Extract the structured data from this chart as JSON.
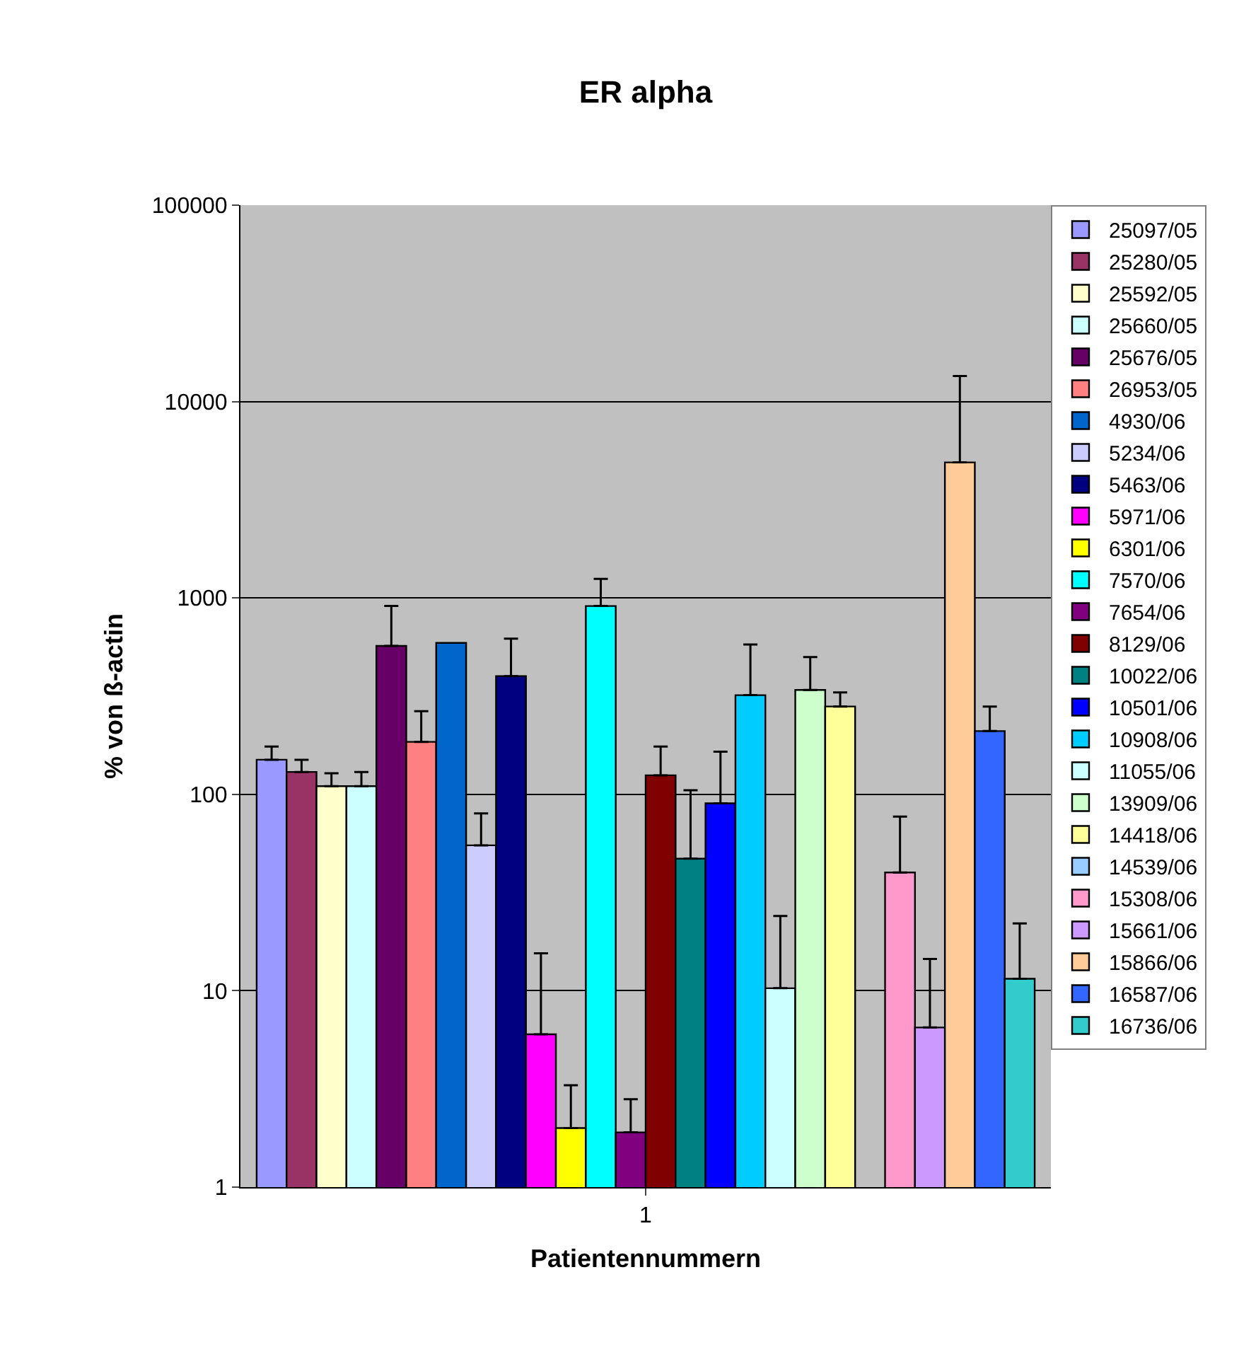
{
  "chart_data": {
    "type": "bar",
    "title": "ER alpha",
    "xlabel": "Patientennummern",
    "ylabel": "% von ß-actin",
    "categories": [
      "1"
    ],
    "log": true,
    "ylim": [
      1,
      100000
    ],
    "yticks": [
      1,
      10,
      100,
      1000,
      10000,
      100000
    ],
    "grid": "y",
    "legend": "right",
    "series": [
      {
        "name": "25097/05",
        "color": "#9999ff",
        "values": [
          150
        ],
        "errors": [
          [
            150,
            175
          ]
        ]
      },
      {
        "name": "25280/05",
        "color": "#993366",
        "values": [
          130
        ],
        "errors": [
          [
            130,
            150
          ]
        ]
      },
      {
        "name": "25592/05",
        "color": "#ffffcc",
        "values": [
          110
        ],
        "errors": [
          [
            110,
            128
          ]
        ]
      },
      {
        "name": "25660/05",
        "color": "#ccffff",
        "values": [
          110
        ],
        "errors": [
          [
            110,
            130
          ]
        ]
      },
      {
        "name": "25676/05",
        "color": "#660066",
        "values": [
          570
        ],
        "errors": [
          [
            570,
            910
          ]
        ]
      },
      {
        "name": "26953/05",
        "color": "#ff8080",
        "values": [
          185
        ],
        "errors": [
          [
            185,
            265
          ]
        ]
      },
      {
        "name": "4930/06",
        "color": "#0066cc",
        "values": [
          590
        ]
      },
      {
        "name": "5234/06",
        "color": "#ccccff",
        "values": [
          55
        ],
        "errors": [
          [
            55,
            80
          ]
        ]
      },
      {
        "name": "5463/06",
        "color": "#000080",
        "values": [
          400
        ],
        "errors": [
          [
            400,
            620
          ]
        ]
      },
      {
        "name": "5971/06",
        "color": "#ff00ff",
        "values": [
          6
        ],
        "errors": [
          [
            6,
            15.5
          ]
        ]
      },
      {
        "name": "6301/06",
        "color": "#ffff00",
        "values": [
          2
        ],
        "errors": [
          [
            2,
            3.3
          ]
        ]
      },
      {
        "name": "7570/06",
        "color": "#00ffff",
        "values": [
          910
        ],
        "errors": [
          [
            910,
            1250
          ]
        ]
      },
      {
        "name": "7654/06",
        "color": "#800080",
        "values": [
          1.9
        ],
        "errors": [
          [
            1.9,
            2.8
          ]
        ]
      },
      {
        "name": "8129/06",
        "color": "#800000",
        "values": [
          125
        ],
        "errors": [
          [
            125,
            175
          ]
        ]
      },
      {
        "name": "10022/06",
        "color": "#008080",
        "values": [
          47
        ],
        "errors": [
          [
            47,
            105
          ]
        ]
      },
      {
        "name": "10501/06",
        "color": "#0000ff",
        "values": [
          90
        ],
        "errors": [
          [
            90,
            165
          ]
        ]
      },
      {
        "name": "10908/06",
        "color": "#00ccff",
        "values": [
          320
        ],
        "errors": [
          [
            320,
            580
          ]
        ]
      },
      {
        "name": "11055/06",
        "color": "#ccffff",
        "values": [
          10.3
        ],
        "errors": [
          [
            10.3,
            24
          ]
        ]
      },
      {
        "name": "13909/06",
        "color": "#ccffcc",
        "values": [
          340
        ],
        "errors": [
          [
            340,
            500
          ]
        ]
      },
      {
        "name": "14418/06",
        "color": "#ffff99",
        "values": [
          280
        ],
        "errors": [
          [
            280,
            330
          ]
        ]
      },
      {
        "name": "14539/06",
        "color": "#99ccff",
        "values": [
          null
        ]
      },
      {
        "name": "15308/06",
        "color": "#ff99cc",
        "values": [
          40
        ],
        "errors": [
          [
            40,
            77
          ]
        ]
      },
      {
        "name": "15661/06",
        "color": "#cc99ff",
        "values": [
          6.5
        ],
        "errors": [
          [
            6.5,
            14.5
          ]
        ]
      },
      {
        "name": "15866/06",
        "color": "#ffcc99",
        "values": [
          4900
        ],
        "errors": [
          [
            4900,
            13500
          ]
        ]
      },
      {
        "name": "16587/06",
        "color": "#3366ff",
        "values": [
          210
        ],
        "errors": [
          [
            210,
            280
          ]
        ]
      },
      {
        "name": "16736/06",
        "color": "#33cccc",
        "values": [
          11.5
        ],
        "errors": [
          [
            11.5,
            22
          ]
        ]
      }
    ]
  }
}
